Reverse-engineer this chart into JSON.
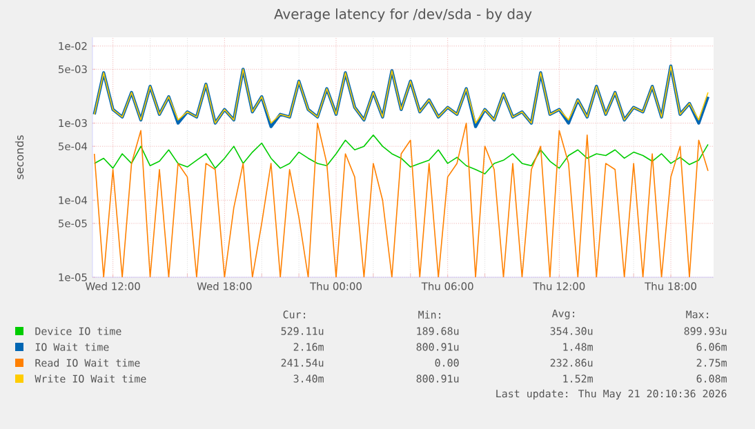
{
  "chart_data": {
    "type": "line",
    "title": "Average latency for /dev/sda - by day",
    "ylabel": "seconds",
    "log": "y",
    "grid": true,
    "legend": "bottom",
    "marker": "none",
    "xlim": [
      "2026-05-20T10:54",
      "2026-05-21T20:18"
    ],
    "xticks": [
      {
        "value": "2026-05-20T12:00",
        "label": "Wed 12:00"
      },
      {
        "value": "2026-05-20T18:00",
        "label": "Wed 18:00"
      },
      {
        "value": "2026-05-21T00:00",
        "label": "Thu 00:00"
      },
      {
        "value": "2026-05-21T06:00",
        "label": "Thu 06:00"
      },
      {
        "value": "2026-05-21T12:00",
        "label": "Thu 12:00"
      },
      {
        "value": "2026-05-21T18:00",
        "label": "Thu 18:00"
      }
    ],
    "ylim": [
      1e-05,
      0.013
    ],
    "yticks": [
      {
        "value": 1e-05,
        "label": "1e-05"
      },
      {
        "value": 5e-05,
        "label": "5e-05"
      },
      {
        "value": 0.0001,
        "label": "1e-04"
      },
      {
        "value": 0.0005,
        "label": "5e-04"
      },
      {
        "value": 0.001,
        "label": "1e-03"
      },
      {
        "value": 0.005,
        "label": "5e-03"
      },
      {
        "value": 0.01,
        "label": "1e-02"
      }
    ],
    "x": [
      "2026-05-20T11:00",
      "2026-05-20T11:30",
      "2026-05-20T12:00",
      "2026-05-20T12:30",
      "2026-05-20T13:00",
      "2026-05-20T13:30",
      "2026-05-20T14:00",
      "2026-05-20T14:30",
      "2026-05-20T15:00",
      "2026-05-20T15:30",
      "2026-05-20T16:00",
      "2026-05-20T16:30",
      "2026-05-20T17:00",
      "2026-05-20T17:30",
      "2026-05-20T18:00",
      "2026-05-20T18:30",
      "2026-05-20T19:00",
      "2026-05-20T19:30",
      "2026-05-20T20:00",
      "2026-05-20T20:30",
      "2026-05-20T21:00",
      "2026-05-20T21:30",
      "2026-05-20T22:00",
      "2026-05-20T22:30",
      "2026-05-20T23:00",
      "2026-05-20T23:30",
      "2026-05-21T00:00",
      "2026-05-21T00:30",
      "2026-05-21T01:00",
      "2026-05-21T01:30",
      "2026-05-21T02:00",
      "2026-05-21T02:30",
      "2026-05-21T03:00",
      "2026-05-21T03:30",
      "2026-05-21T04:00",
      "2026-05-21T04:30",
      "2026-05-21T05:00",
      "2026-05-21T05:30",
      "2026-05-21T06:00",
      "2026-05-21T06:30",
      "2026-05-21T07:00",
      "2026-05-21T07:30",
      "2026-05-21T08:00",
      "2026-05-21T08:30",
      "2026-05-21T09:00",
      "2026-05-21T09:30",
      "2026-05-21T10:00",
      "2026-05-21T10:30",
      "2026-05-21T11:00",
      "2026-05-21T11:30",
      "2026-05-21T12:00",
      "2026-05-21T12:30",
      "2026-05-21T13:00",
      "2026-05-21T13:30",
      "2026-05-21T14:00",
      "2026-05-21T14:30",
      "2026-05-21T15:00",
      "2026-05-21T15:30",
      "2026-05-21T16:00",
      "2026-05-21T16:30",
      "2026-05-21T17:00",
      "2026-05-21T17:30",
      "2026-05-21T18:00",
      "2026-05-21T18:30",
      "2026-05-21T19:00",
      "2026-05-21T19:30",
      "2026-05-21T20:00"
    ],
    "series": [
      {
        "name": "Device IO time",
        "color": "#00cc00",
        "values": [
          0.0003,
          0.00035,
          0.00026,
          0.0004,
          0.0003,
          0.0005,
          0.00028,
          0.00032,
          0.00045,
          0.0003,
          0.00027,
          0.00033,
          0.0004,
          0.00026,
          0.00035,
          0.0005,
          0.0003,
          0.00042,
          0.00055,
          0.00035,
          0.00026,
          0.0003,
          0.00042,
          0.00035,
          0.0003,
          0.00028,
          0.0004,
          0.0006,
          0.00045,
          0.0005,
          0.0007,
          0.0005,
          0.0004,
          0.00035,
          0.00027,
          0.0003,
          0.00033,
          0.00045,
          0.0003,
          0.00036,
          0.00028,
          0.00025,
          0.00022,
          0.0003,
          0.00033,
          0.0004,
          0.0003,
          0.00028,
          0.00045,
          0.00032,
          0.00026,
          0.00038,
          0.00045,
          0.00035,
          0.0004,
          0.00038,
          0.00045,
          0.00035,
          0.00042,
          0.00038,
          0.00032,
          0.0004,
          0.0003,
          0.00036,
          0.00029,
          0.00033,
          0.00053
        ]
      },
      {
        "name": "IO Wait time",
        "color": "#0066b3",
        "values": [
          0.0013,
          0.0045,
          0.0015,
          0.0012,
          0.0025,
          0.0011,
          0.003,
          0.0013,
          0.0022,
          0.001,
          0.0014,
          0.0012,
          0.0032,
          0.001,
          0.0015,
          0.0011,
          0.005,
          0.0014,
          0.0022,
          0.0009,
          0.0013,
          0.0012,
          0.0035,
          0.0015,
          0.0012,
          0.0028,
          0.0013,
          0.0045,
          0.0016,
          0.0011,
          0.0025,
          0.0012,
          0.0048,
          0.0015,
          0.0035,
          0.0014,
          0.002,
          0.0012,
          0.0016,
          0.0013,
          0.0028,
          0.0009,
          0.0015,
          0.0011,
          0.0024,
          0.0012,
          0.0014,
          0.001,
          0.0045,
          0.0013,
          0.0015,
          0.001,
          0.002,
          0.0012,
          0.003,
          0.0013,
          0.0025,
          0.0011,
          0.0016,
          0.0014,
          0.003,
          0.0012,
          0.0055,
          0.0013,
          0.0018,
          0.001,
          0.0022
        ]
      },
      {
        "name": "Read IO Wait time",
        "color": "#ff8000",
        "values": [
          0.0004,
          1e-05,
          0.00025,
          1e-05,
          0.0003,
          0.0008,
          1e-05,
          0.00025,
          1e-05,
          0.0003,
          0.0002,
          1e-05,
          0.0003,
          0.00025,
          1e-05,
          8e-05,
          0.0003,
          1e-05,
          5e-05,
          0.0003,
          1e-05,
          0.00025,
          6e-05,
          1e-05,
          0.001,
          0.0003,
          1e-05,
          0.0004,
          0.0002,
          1e-05,
          0.0003,
          0.0001,
          1e-05,
          0.0004,
          0.0006,
          1e-05,
          0.0003,
          1e-05,
          0.0002,
          0.0003,
          0.001,
          1e-05,
          0.0005,
          0.00025,
          1e-05,
          0.0003,
          1e-05,
          0.00025,
          0.0005,
          1e-05,
          0.0008,
          0.0003,
          1e-05,
          0.0007,
          1e-05,
          0.0003,
          0.00025,
          1e-05,
          0.0003,
          1e-05,
          0.0004,
          1e-05,
          0.0002,
          0.0005,
          1e-05,
          0.0006,
          0.00024
        ]
      },
      {
        "name": "Write IO Wait time",
        "color": "#ffcc00",
        "values": [
          0.0013,
          0.0045,
          0.0015,
          0.0012,
          0.0025,
          0.0011,
          0.003,
          0.0013,
          0.0022,
          0.0011,
          0.0014,
          0.0012,
          0.0032,
          0.001,
          0.0015,
          0.0011,
          0.005,
          0.0014,
          0.0022,
          0.001,
          0.0013,
          0.0012,
          0.0035,
          0.0015,
          0.0012,
          0.0028,
          0.0013,
          0.0045,
          0.0016,
          0.0011,
          0.0025,
          0.0012,
          0.0048,
          0.0015,
          0.0035,
          0.0014,
          0.002,
          0.0012,
          0.0016,
          0.0013,
          0.0028,
          0.001,
          0.0015,
          0.0011,
          0.0024,
          0.0012,
          0.0014,
          0.001,
          0.0045,
          0.0013,
          0.0015,
          0.0011,
          0.002,
          0.0012,
          0.003,
          0.0013,
          0.0025,
          0.0011,
          0.0016,
          0.0014,
          0.003,
          0.0012,
          0.0055,
          0.0013,
          0.0018,
          0.0011,
          0.0025
        ]
      }
    ],
    "annotations": [
      "Cur:",
      "Min:",
      "Avg:",
      "Max:",
      "529.11u",
      "189.68u",
      "354.30u",
      "899.93u",
      "2.16m",
      "800.91u",
      "1.48m",
      "6.06m",
      "241.54u",
      "0.00",
      "232.86u",
      "2.75m",
      "3.40m",
      "800.91u",
      "1.52m",
      "6.08m",
      "Last update: Thu May 21 20:10:36 2026"
    ]
  }
}
